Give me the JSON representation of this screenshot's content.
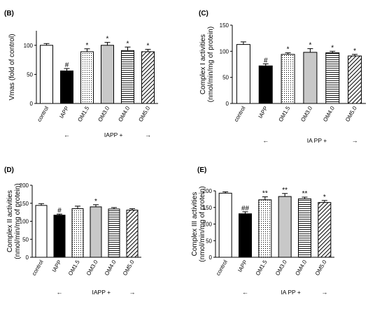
{
  "chart_data": [
    {
      "panel": "(B)",
      "type": "bar",
      "ylabel": "Vmas (fold of control)",
      "ylim": [
        0,
        125
      ],
      "yticks": [
        0,
        50,
        100
      ],
      "categories": [
        "control",
        "IAPP",
        "OM1.5",
        "OM3.0",
        "OM4.0",
        "OM5.0"
      ],
      "values": [
        100,
        56,
        89,
        100,
        91,
        89
      ],
      "errors": [
        3,
        4,
        5,
        5,
        6,
        4
      ],
      "annotations": [
        "",
        "#",
        "*",
        "*",
        "*",
        "*"
      ],
      "group_label": "IAPP +",
      "arrow_left": "←",
      "arrow_right": "→",
      "fills": [
        "white",
        "solid-black",
        "dots",
        "solid-gray",
        "horizontal-lines",
        "diagonal-lines"
      ]
    },
    {
      "panel": "(C)",
      "type": "bar",
      "ylabel": "Complex I activities\n(nmol/min/mg of protein)",
      "ylim": [
        0,
        150
      ],
      "yticks": [
        0,
        50,
        100,
        150
      ],
      "categories": [
        "control",
        "IAPP",
        "OM1.5",
        "OM3.0",
        "OM4.0",
        "OM5.0"
      ],
      "values": [
        113,
        72,
        94,
        98,
        97,
        91
      ],
      "errors": [
        5,
        4,
        3,
        7,
        3,
        3
      ],
      "annotations": [
        "",
        "#",
        "*",
        "*",
        "*",
        "*"
      ],
      "group_label": "IA PP +",
      "arrow_left": "←",
      "arrow_right": "→",
      "fills": [
        "white",
        "solid-black",
        "dots",
        "solid-gray",
        "horizontal-lines",
        "diagonal-lines"
      ]
    },
    {
      "panel": "(D)",
      "type": "bar",
      "ylabel": "Complex II activities\n(nmol/min/mg of protein)",
      "ylim": [
        0,
        200
      ],
      "yticks": [
        0,
        50,
        100,
        150,
        200
      ],
      "categories": [
        "control",
        "IAPP",
        "OM1.5",
        "OM3.0",
        "OM4.0",
        "OM5.0"
      ],
      "values": [
        144,
        117,
        135,
        140,
        134,
        131
      ],
      "errors": [
        5,
        3,
        7,
        6,
        4,
        4
      ],
      "annotations": [
        "",
        "#",
        "",
        "*",
        "",
        ""
      ],
      "group_label": "IAPP +",
      "arrow_left": "←",
      "arrow_right": "→",
      "fills": [
        "white",
        "solid-black",
        "dots",
        "solid-gray",
        "horizontal-lines",
        "diagonal-lines"
      ]
    },
    {
      "panel": "(E)",
      "type": "bar",
      "ylabel": "Complex III activities\n(nmol/min/mg of protein)",
      "ylim": [
        0,
        200
      ],
      "yticks": [
        0,
        50,
        100,
        150,
        200
      ],
      "categories": [
        "control",
        "IAPP",
        "OM1.5",
        "OM3.0",
        "OM4.0",
        "OM5.0"
      ],
      "values": [
        193,
        131,
        173,
        183,
        176,
        165
      ],
      "errors": [
        4,
        6,
        9,
        9,
        5,
        6
      ],
      "annotations": [
        "",
        "##",
        "**",
        "**",
        "**",
        "*"
      ],
      "group_label": "IA PP +",
      "arrow_left": "←",
      "arrow_right": "→",
      "fills": [
        "white",
        "solid-black",
        "dots",
        "solid-gray",
        "horizontal-lines",
        "diagonal-lines"
      ]
    }
  ]
}
